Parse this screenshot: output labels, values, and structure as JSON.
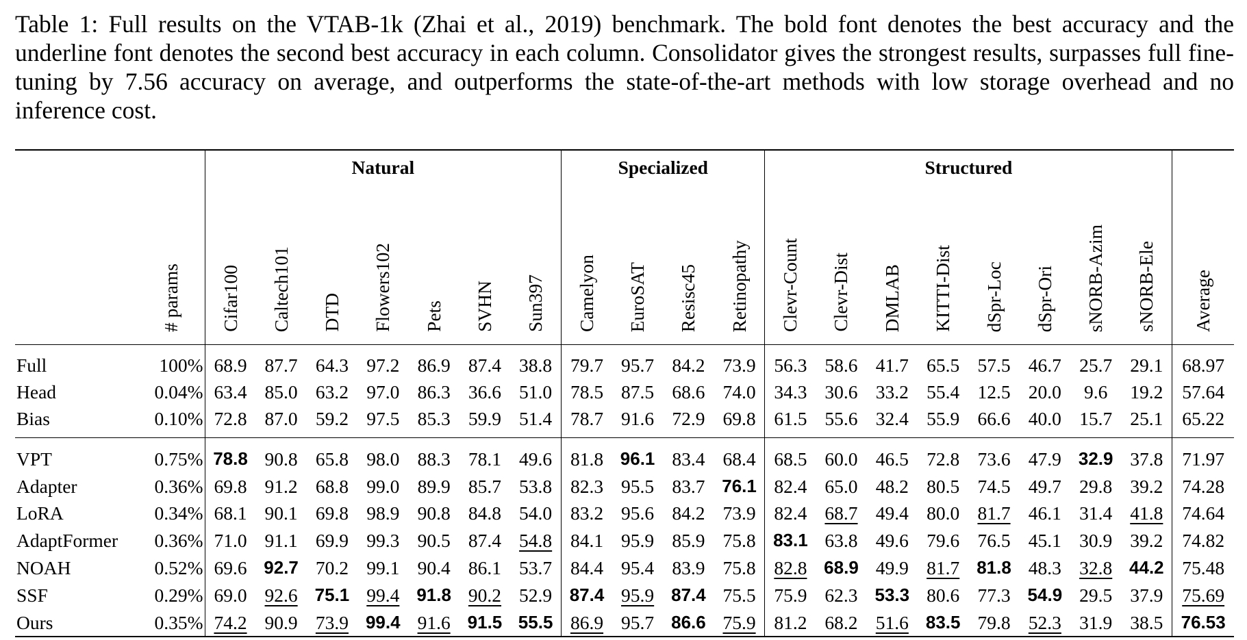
{
  "caption": "Table 1: Full results on the VTAB-1k (Zhai et al., 2019) benchmark. The bold font denotes the best accuracy and the underline font denotes the second best accuracy in each column. Consolidator gives the strongest results, surpasses full fine-tuning by 7.56 accuracy on average, and outperforms the state-of-the-art methods with low storage overhead and no inference cost.",
  "groups": [
    "Natural",
    "Specialized",
    "Structured"
  ],
  "columns": [
    "# params",
    "Cifar100",
    "Caltech101",
    "DTD",
    "Flowers102",
    "Pets",
    "SVHN",
    "Sun397",
    "Camelyon",
    "EuroSAT",
    "Resisc45",
    "Retinopathy",
    "Clevr-Count",
    "Clevr-Dist",
    "DMLAB",
    "KITTI-Dist",
    "dSpr-Loc",
    "dSpr-Ori",
    "sNORB-Azim",
    "sNORB-Ele",
    "Average"
  ],
  "rows": [
    {
      "method": "Full",
      "params": "100%",
      "values": [
        "68.9",
        "87.7",
        "64.3",
        "97.2",
        "86.9",
        "87.4",
        "38.8",
        "79.7",
        "95.7",
        "84.2",
        "73.9",
        "56.3",
        "58.6",
        "41.7",
        "65.5",
        "57.5",
        "46.7",
        "25.7",
        "29.1",
        "68.97"
      ],
      "fmt": [
        "",
        "",
        "",
        "",
        "",
        "",
        "",
        "",
        "",
        "",
        "",
        "",
        "",
        "",
        "",
        "",
        "",
        "",
        "",
        ""
      ]
    },
    {
      "method": "Head",
      "params": "0.04%",
      "values": [
        "63.4",
        "85.0",
        "63.2",
        "97.0",
        "86.3",
        "36.6",
        "51.0",
        "78.5",
        "87.5",
        "68.6",
        "74.0",
        "34.3",
        "30.6",
        "33.2",
        "55.4",
        "12.5",
        "20.0",
        "9.6",
        "19.2",
        "57.64"
      ],
      "fmt": [
        "",
        "",
        "",
        "",
        "",
        "",
        "",
        "",
        "",
        "",
        "",
        "",
        "",
        "",
        "",
        "",
        "",
        "",
        "",
        ""
      ]
    },
    {
      "method": "Bias",
      "params": "0.10%",
      "values": [
        "72.8",
        "87.0",
        "59.2",
        "97.5",
        "85.3",
        "59.9",
        "51.4",
        "78.7",
        "91.6",
        "72.9",
        "69.8",
        "61.5",
        "55.6",
        "32.4",
        "55.9",
        "66.6",
        "40.0",
        "15.7",
        "25.1",
        "65.22"
      ],
      "fmt": [
        "",
        "",
        "",
        "",
        "",
        "",
        "",
        "",
        "",
        "",
        "",
        "",
        "",
        "",
        "",
        "",
        "",
        "",
        "",
        ""
      ]
    },
    {
      "method": "VPT",
      "params": "0.75%",
      "values": [
        "78.8",
        "90.8",
        "65.8",
        "98.0",
        "88.3",
        "78.1",
        "49.6",
        "81.8",
        "96.1",
        "83.4",
        "68.4",
        "68.5",
        "60.0",
        "46.5",
        "72.8",
        "73.6",
        "47.9",
        "32.9",
        "37.8",
        "71.97"
      ],
      "fmt": [
        "b",
        "",
        "",
        "",
        "",
        "",
        "",
        "",
        "b",
        "",
        "",
        "",
        "",
        "",
        "",
        "",
        "",
        "b",
        "",
        ""
      ]
    },
    {
      "method": "Adapter",
      "params": "0.36%",
      "values": [
        "69.8",
        "91.2",
        "68.8",
        "99.0",
        "89.9",
        "85.7",
        "53.8",
        "82.3",
        "95.5",
        "83.7",
        "76.1",
        "82.4",
        "65.0",
        "48.2",
        "80.5",
        "74.5",
        "49.7",
        "29.8",
        "39.2",
        "74.28"
      ],
      "fmt": [
        "",
        "",
        "",
        "",
        "",
        "",
        "",
        "",
        "",
        "",
        "b",
        "",
        "",
        "",
        "",
        "",
        "",
        "",
        "",
        ""
      ]
    },
    {
      "method": "LoRA",
      "params": "0.34%",
      "values": [
        "68.1",
        "90.1",
        "69.8",
        "98.9",
        "90.8",
        "84.8",
        "54.0",
        "83.2",
        "95.6",
        "84.2",
        "73.9",
        "82.4",
        "68.7",
        "49.4",
        "80.0",
        "81.7",
        "46.1",
        "31.4",
        "41.8",
        "74.64"
      ],
      "fmt": [
        "",
        "",
        "",
        "",
        "",
        "",
        "",
        "",
        "",
        "",
        "",
        "",
        "u",
        "",
        "",
        "u",
        "",
        "",
        "u",
        ""
      ]
    },
    {
      "method": "AdaptFormer",
      "params": "0.36%",
      "values": [
        "71.0",
        "91.1",
        "69.9",
        "99.3",
        "90.5",
        "87.4",
        "54.8",
        "84.1",
        "95.9",
        "85.9",
        "75.8",
        "83.1",
        "63.8",
        "49.6",
        "79.6",
        "76.5",
        "45.1",
        "30.9",
        "39.2",
        "74.82"
      ],
      "fmt": [
        "",
        "",
        "",
        "",
        "",
        "",
        "u",
        "",
        "",
        "",
        "",
        "b",
        "",
        "",
        "",
        "",
        "",
        "",
        "",
        ""
      ]
    },
    {
      "method": "NOAH",
      "params": "0.52%",
      "values": [
        "69.6",
        "92.7",
        "70.2",
        "99.1",
        "90.4",
        "86.1",
        "53.7",
        "84.4",
        "95.4",
        "83.9",
        "75.8",
        "82.8",
        "68.9",
        "49.9",
        "81.7",
        "81.8",
        "48.3",
        "32.8",
        "44.2",
        "75.48"
      ],
      "fmt": [
        "",
        "b",
        "",
        "",
        "",
        "",
        "",
        "",
        "",
        "",
        "",
        "u",
        "b",
        "",
        "u",
        "b",
        "",
        "u",
        "b",
        ""
      ]
    },
    {
      "method": "SSF",
      "params": "0.29%",
      "values": [
        "69.0",
        "92.6",
        "75.1",
        "99.4",
        "91.8",
        "90.2",
        "52.9",
        "87.4",
        "95.9",
        "87.4",
        "75.5",
        "75.9",
        "62.3",
        "53.3",
        "80.6",
        "77.3",
        "54.9",
        "29.5",
        "37.9",
        "75.69"
      ],
      "fmt": [
        "",
        "u",
        "b",
        "u",
        "b",
        "u",
        "",
        "b",
        "u",
        "b",
        "",
        "",
        "",
        "b",
        "",
        "",
        "b",
        "",
        "",
        "u"
      ]
    },
    {
      "method": "Ours",
      "params": "0.35%",
      "values": [
        "74.2",
        "90.9",
        "73.9",
        "99.4",
        "91.6",
        "91.5",
        "55.5",
        "86.9",
        "95.7",
        "86.6",
        "75.9",
        "81.2",
        "68.2",
        "51.6",
        "83.5",
        "79.8",
        "52.3",
        "31.9",
        "38.5",
        "76.53"
      ],
      "fmt": [
        "u",
        "",
        "u",
        "b",
        "u",
        "b",
        "b",
        "u",
        "",
        "b",
        "u",
        "",
        "",
        "u",
        "b",
        "",
        "u",
        "",
        "",
        "b"
      ]
    }
  ]
}
